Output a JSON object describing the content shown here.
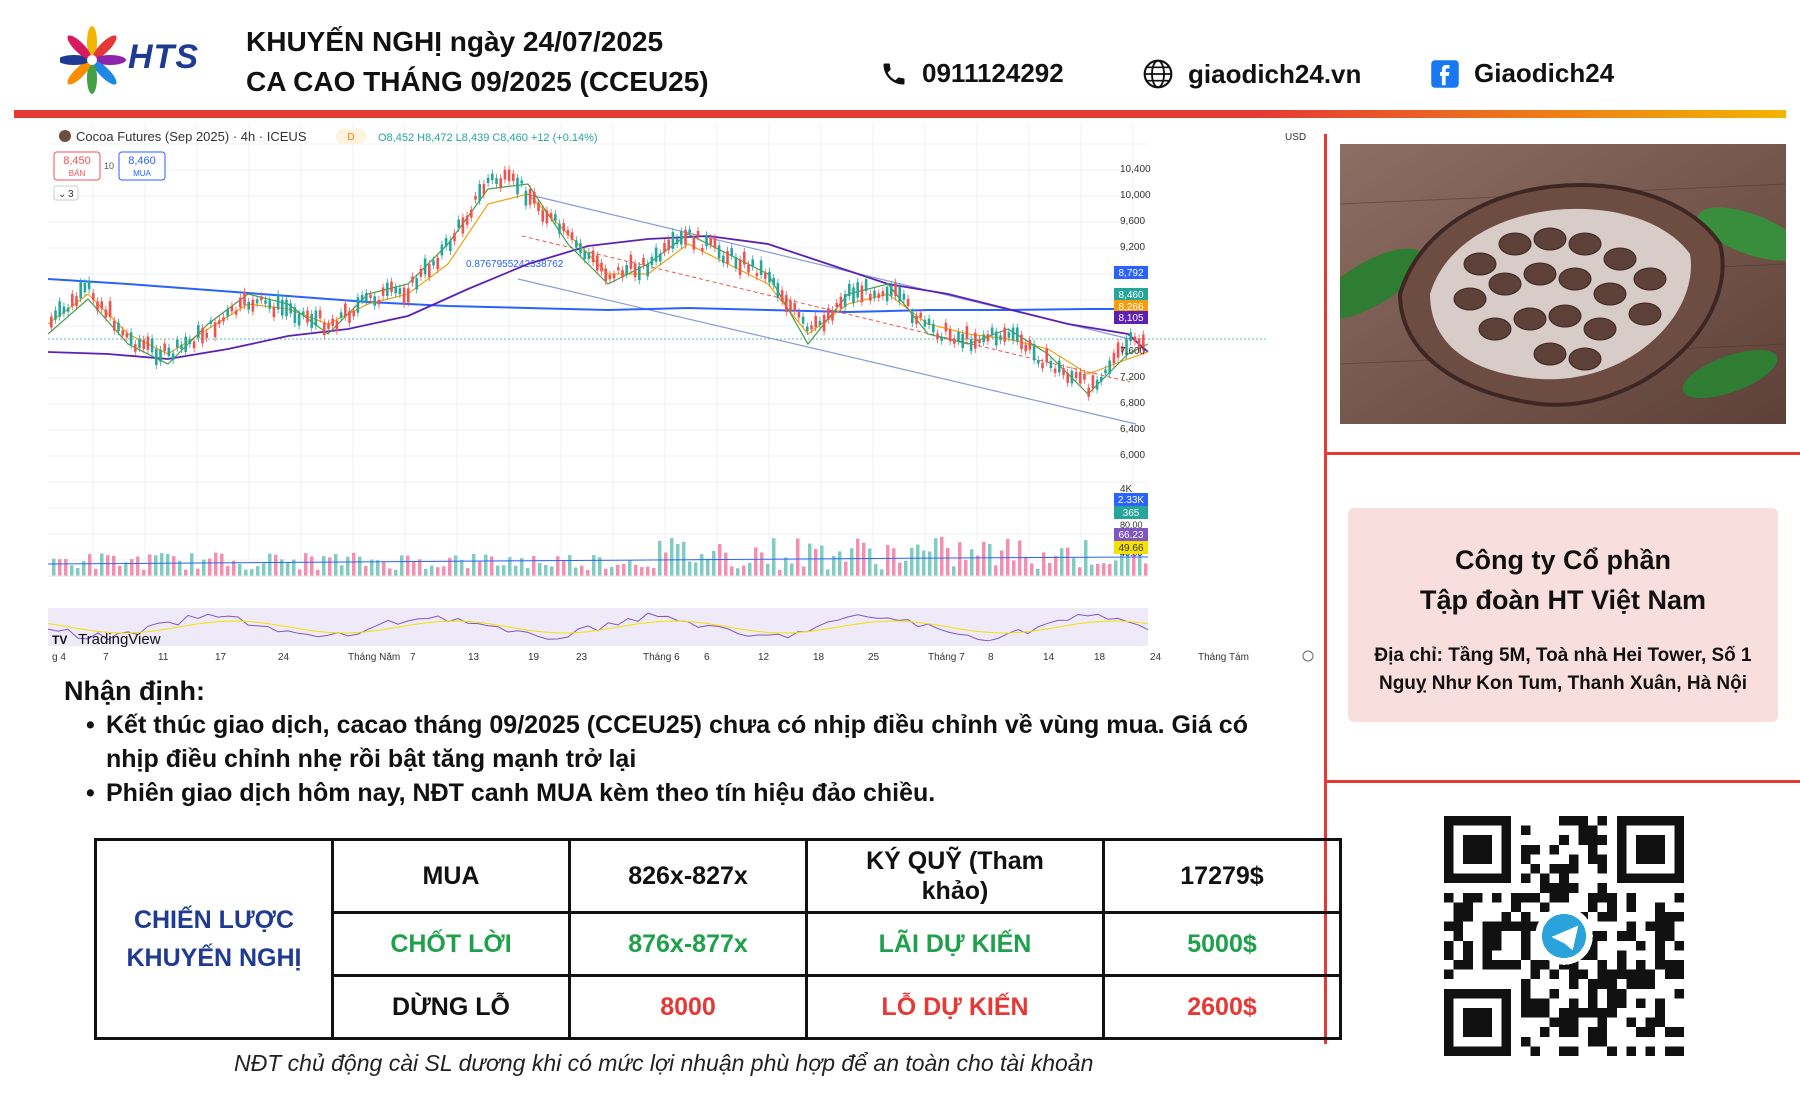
{
  "header": {
    "logo_text": "HTS",
    "title_line1": "KHUYẾN NGHỊ ngày 24/07/2025",
    "title_line2": "CA CAO THÁNG 09/2025 (CCEU25)",
    "phone": "0911124292",
    "website": "giaodich24.vn",
    "facebook": "Giaodich24"
  },
  "chart": {
    "symbol_title": "Cocoa Futures (Sep 2025) · 4h · ICEUS",
    "badge": "D",
    "ohlc": "O8,452 H8,472 L8,439 C8,460 +12 (+0.14%)",
    "sell_price": "8,450",
    "sell_label": "BÁN",
    "spread": "10",
    "buy_price": "8,460",
    "buy_label": "MUA",
    "indicators_toggle": "3",
    "currency": "USD",
    "fib_label": "0.8767955242338762",
    "watermark": "TradingView",
    "price_ticks": [
      "10,400",
      "10,000",
      "9,600",
      "9,200",
      "7,600",
      "7,200",
      "6,800",
      "6,400",
      "6,000"
    ],
    "price_tags": [
      {
        "text": "8,792",
        "color": "#2962ff"
      },
      {
        "text": "8,460",
        "color": "#26a69a"
      },
      {
        "text": "8,266",
        "color": "#f59e0b"
      },
      {
        "text": "8,105",
        "color": "#5b21b6"
      }
    ],
    "volume_ticks": [
      "4K"
    ],
    "volume_tags": [
      {
        "text": "2.33K",
        "color": "#2962ff"
      },
      {
        "text": "365",
        "color": "#26a69a"
      }
    ],
    "rsi_ticks": [
      "80.00",
      "40.00"
    ],
    "rsi_tags": [
      {
        "text": "66.23",
        "color": "#7e57c2"
      },
      {
        "text": "49.66",
        "color": "#f5e100"
      }
    ],
    "time_ticks": [
      "g 4",
      "7",
      "11",
      "17",
      "24",
      "Tháng Năm",
      "7",
      "13",
      "19",
      "23",
      "Tháng 6",
      "6",
      "12",
      "18",
      "25",
      "Tháng 7",
      "8",
      "14",
      "18",
      "24",
      "Tháng Tám"
    ]
  },
  "analysis": {
    "title": "Nhận định:",
    "bullets": [
      "Kết thúc giao dịch, cacao tháng 09/2025 (CCEU25) chưa có nhịp điều chỉnh về vùng mua. Giá có nhịp điều chỉnh nhẹ rồi bật tăng mạnh trở lại",
      "Phiên giao dịch hôm nay, NĐT canh MUA kèm theo tín hiệu đảo chiều."
    ]
  },
  "strategy": {
    "label": "CHIẾN LƯỢC KHUYẾN NGHỊ",
    "rows": [
      {
        "action": "MUA",
        "price": "826x-827x",
        "metric": "KÝ QUỸ (Tham khảo)",
        "value": "17279$"
      },
      {
        "action": "CHỐT LỜI",
        "price": "876x-877x",
        "metric": "LÃI DỰ KIẾN",
        "value": "5000$"
      },
      {
        "action": "DỪNG LỖ",
        "price": "8000",
        "metric": "LỖ DỰ KIẾN",
        "value": "2600$"
      }
    ]
  },
  "company": {
    "name_line1": "Công ty Cổ phần",
    "name_line2": "Tập đoàn HT Việt Nam",
    "address": "Địa chỉ: Tầng 5M, Toà nhà Hei Tower, Số 1 Nguỵ Như Kon Tum, Thanh Xuân, Hà Nội"
  },
  "footnote": "NĐT chủ động cài SL dương khi có mức lợi nhuận phù hợp để an toàn cho tài khoản"
}
